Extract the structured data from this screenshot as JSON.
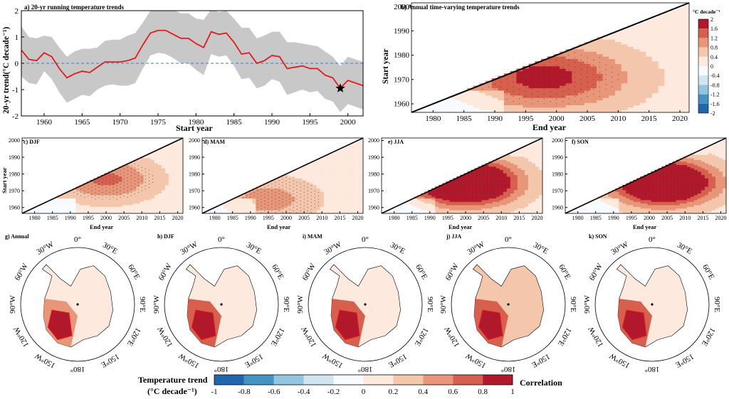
{
  "colors": {
    "scale": [
      "#2166ac",
      "#4393c3",
      "#92c5de",
      "#d1e5f0",
      "#f7fbff",
      "#fde9dd",
      "#f4c7ad",
      "#e8967a",
      "#d6604d",
      "#b2182b"
    ],
    "trend_line": "#e41a1c",
    "band": "#c8c8c8",
    "zero_line": "#3a7bd5"
  },
  "chart_data": [
    {
      "id": "a",
      "type": "line",
      "title": "a) 20-yr running temperature trends",
      "xlabel": "Start year",
      "ylabel": "20-yr trend(°C decade⁻¹)",
      "xlim": [
        1957,
        2002
      ],
      "ylim": [
        -2,
        2
      ],
      "xticks": [
        "1960",
        "1965",
        "1970",
        "1975",
        "1980",
        "1985",
        "1990",
        "1995",
        "2000"
      ],
      "yticks": [
        "-2",
        "-1",
        "0",
        "1",
        "2"
      ],
      "x": [
        1957,
        1958,
        1959,
        1960,
        1961,
        1962,
        1963,
        1964,
        1965,
        1966,
        1967,
        1968,
        1969,
        1970,
        1971,
        1972,
        1973,
        1974,
        1975,
        1976,
        1977,
        1978,
        1979,
        1980,
        1981,
        1982,
        1983,
        1984,
        1985,
        1986,
        1987,
        1988,
        1989,
        1990,
        1991,
        1992,
        1993,
        1994,
        1995,
        1996,
        1997,
        1998,
        1999,
        2000,
        2001,
        2002
      ],
      "series": [
        {
          "name": "trend",
          "values": [
            0.5,
            0.15,
            0.1,
            0.4,
            0.25,
            -0.2,
            -0.55,
            -0.4,
            -0.3,
            -0.35,
            -0.15,
            0.05,
            0.05,
            0.05,
            0.1,
            0.2,
            0.7,
            1.15,
            1.25,
            1.25,
            1.1,
            0.95,
            0.95,
            0.75,
            0.6,
            1.2,
            1.1,
            1.15,
            0.8,
            0.35,
            0.4,
            0.0,
            0.1,
            0.3,
            0.25,
            -0.2,
            -0.15,
            -0.1,
            -0.2,
            -0.2,
            -0.45,
            -0.55,
            -0.95,
            -0.65,
            -0.75,
            -0.85
          ]
        },
        {
          "name": "upper",
          "values": [
            1.4,
            1.0,
            0.95,
            1.05,
            1.0,
            0.6,
            0.25,
            0.45,
            0.55,
            0.55,
            0.6,
            0.85,
            0.9,
            0.9,
            1.05,
            1.15,
            1.55,
            2.0,
            2.1,
            2.15,
            2.05,
            1.9,
            1.9,
            1.7,
            1.65,
            2.05,
            1.95,
            2.0,
            1.7,
            1.35,
            1.35,
            0.95,
            1.05,
            1.2,
            1.2,
            0.8,
            0.8,
            0.75,
            0.7,
            0.65,
            0.45,
            0.25,
            -0.1,
            0.25,
            0.15,
            0.05
          ]
        },
        {
          "name": "lower",
          "values": [
            -0.5,
            -0.75,
            -0.8,
            -0.3,
            -0.6,
            -1.1,
            -1.5,
            -1.35,
            -1.2,
            -1.25,
            -1.0,
            -0.85,
            -0.8,
            -0.85,
            -0.85,
            -0.75,
            -0.2,
            0.3,
            0.4,
            0.35,
            0.2,
            0.0,
            0.0,
            -0.25,
            -0.45,
            0.35,
            0.25,
            0.3,
            -0.1,
            -0.6,
            -0.55,
            -0.95,
            -0.85,
            -0.6,
            -0.7,
            -1.2,
            -1.1,
            -1.0,
            -1.1,
            -1.05,
            -1.35,
            -1.45,
            -1.85,
            -1.55,
            -1.65,
            -1.75
          ]
        }
      ],
      "marker": {
        "x": 1999,
        "y": -0.95,
        "symbol": "star"
      }
    },
    {
      "id": "b",
      "type": "heatmap",
      "title": "b) Annual time-varying temperature trends",
      "xlabel": "End year",
      "ylabel": "Start year",
      "xticks": [
        "1980",
        "1985",
        "1990",
        "1995",
        "2000",
        "2005",
        "2010",
        "2015",
        "2020"
      ],
      "yticks": [
        "1960",
        "1970",
        "1980",
        "1990",
        "2000"
      ],
      "xlim": [
        1977,
        2022
      ],
      "ylim": [
        1957,
        2002
      ],
      "hot": {
        "x": 1998,
        "y": 1971,
        "peak": 0.8
      }
    },
    {
      "id": "c",
      "type": "heatmap",
      "title": "c) DJF",
      "xlabel": "End year",
      "ylabel": "Start year",
      "xticks": [
        "1980",
        "1985",
        "1990",
        "1995",
        "2000",
        "2005",
        "2010",
        "2015",
        "2020"
      ],
      "yticks": [
        "1960",
        "1970",
        "1980",
        "1990",
        "2000"
      ],
      "xlim": [
        1977,
        2022
      ],
      "ylim": [
        1957,
        2002
      ],
      "hot": {
        "x": 2000,
        "y": 1977,
        "peak": 0.55
      }
    },
    {
      "id": "d",
      "type": "heatmap",
      "title": "d) MAM",
      "xlabel": "End year",
      "ylabel": "",
      "xticks": [
        "1980",
        "1985",
        "1990",
        "1995",
        "2000",
        "2005",
        "2010",
        "2015",
        "2020"
      ],
      "yticks": [
        "1960",
        "1970",
        "1980",
        "1990",
        "2000"
      ],
      "xlim": [
        1977,
        2022
      ],
      "ylim": [
        1957,
        2002
      ],
      "hot": {
        "x": 1995,
        "y": 1965,
        "peak": 0.4
      }
    },
    {
      "id": "e",
      "type": "heatmap",
      "title": "e) JJA",
      "xlabel": "End year",
      "ylabel": "",
      "xticks": [
        "1980",
        "1985",
        "1990",
        "1995",
        "2000",
        "2005",
        "2010",
        "2015",
        "2020"
      ],
      "yticks": [
        "1960",
        "1970",
        "1980",
        "1990",
        "2000"
      ],
      "xlim": [
        1977,
        2022
      ],
      "ylim": [
        1957,
        2002
      ],
      "hot": {
        "x": 2000,
        "y": 1975,
        "peak": 1.7
      }
    },
    {
      "id": "f",
      "type": "heatmap",
      "title": "f) SON",
      "xlabel": "End year",
      "ylabel": "",
      "xticks": [
        "1980",
        "1985",
        "1990",
        "1995",
        "2000",
        "2005",
        "2010",
        "2015",
        "2020"
      ],
      "yticks": [
        "1960",
        "1970",
        "1980",
        "1990",
        "2000"
      ],
      "xlim": [
        1977,
        2022
      ],
      "ylim": [
        1957,
        2002
      ],
      "hot": {
        "x": 2004,
        "y": 1975,
        "peak": 1.6
      }
    },
    {
      "id": "b_colorbar",
      "type": "colorbar",
      "title": "°C decade⁻¹",
      "labels": [
        "2",
        "1.6",
        "1.2",
        "0.8",
        "0.4",
        "0",
        "-0.4",
        "-0.8",
        "-1.2",
        "-1.6",
        "-2"
      ]
    },
    {
      "id": "maps",
      "type": "heatmap",
      "panels": [
        {
          "title": "g) Annual"
        },
        {
          "title": "h) DJF"
        },
        {
          "title": "i) MAM"
        },
        {
          "title": "j) JJA"
        },
        {
          "title": "k) SON"
        }
      ],
      "lon_labels": [
        "0°",
        "30°E",
        "60°E",
        "90°E",
        "120°E",
        "150°E",
        "180°",
        "150°W",
        "120°W",
        "90°W",
        "60°W",
        "30°W"
      ]
    },
    {
      "id": "bottom_colorbar",
      "type": "colorbar",
      "left_title_1": "Temperature trend",
      "left_title_2": "(°C decade⁻¹)",
      "right_title": "Correlation",
      "labels": [
        "-1",
        "-0.8",
        "-0.6",
        "-0.4",
        "-0.2",
        "0",
        "0.2",
        "0.4",
        "0.6",
        "0.8",
        "1"
      ]
    }
  ]
}
